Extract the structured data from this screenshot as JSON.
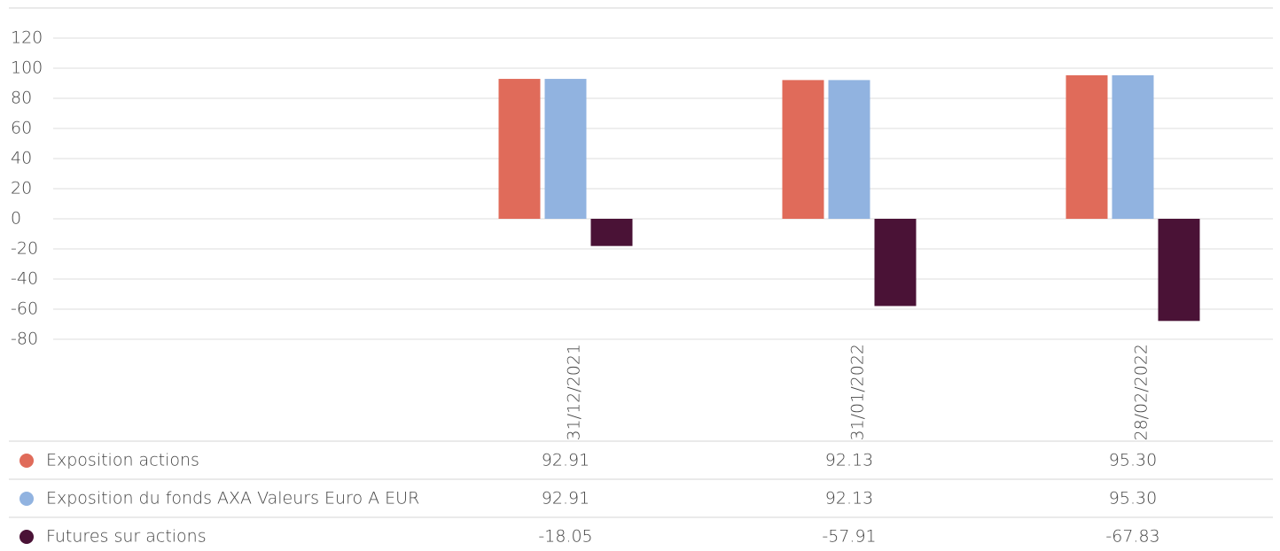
{
  "chart_data": {
    "type": "bar",
    "categories": [
      null,
      "31/12/2021",
      "31/01/2022",
      "28/02/2022"
    ],
    "series": [
      {
        "name": "Exposition actions",
        "color": "#e06b5a",
        "values": [
          null,
          92.91,
          92.13,
          95.3
        ],
        "value_labels": [
          null,
          "92.91",
          "92.13",
          "95.30"
        ]
      },
      {
        "name": "Exposition du fonds AXA Valeurs Euro A EUR",
        "color": "#91b3e0",
        "values": [
          null,
          92.91,
          92.13,
          95.3
        ],
        "value_labels": [
          null,
          "92.91",
          "92.13",
          "95.30"
        ]
      },
      {
        "name": "Futures sur actions",
        "color": "#4a1236",
        "values": [
          null,
          -18.05,
          -57.91,
          -67.83
        ],
        "value_labels": [
          null,
          "-18.05",
          "-57.91",
          "-67.83"
        ]
      }
    ],
    "ylim": [
      -80,
      120
    ],
    "yticks": [
      -80,
      -60,
      -40,
      -20,
      0,
      20,
      40,
      60,
      80,
      100,
      120
    ],
    "grid": true
  }
}
